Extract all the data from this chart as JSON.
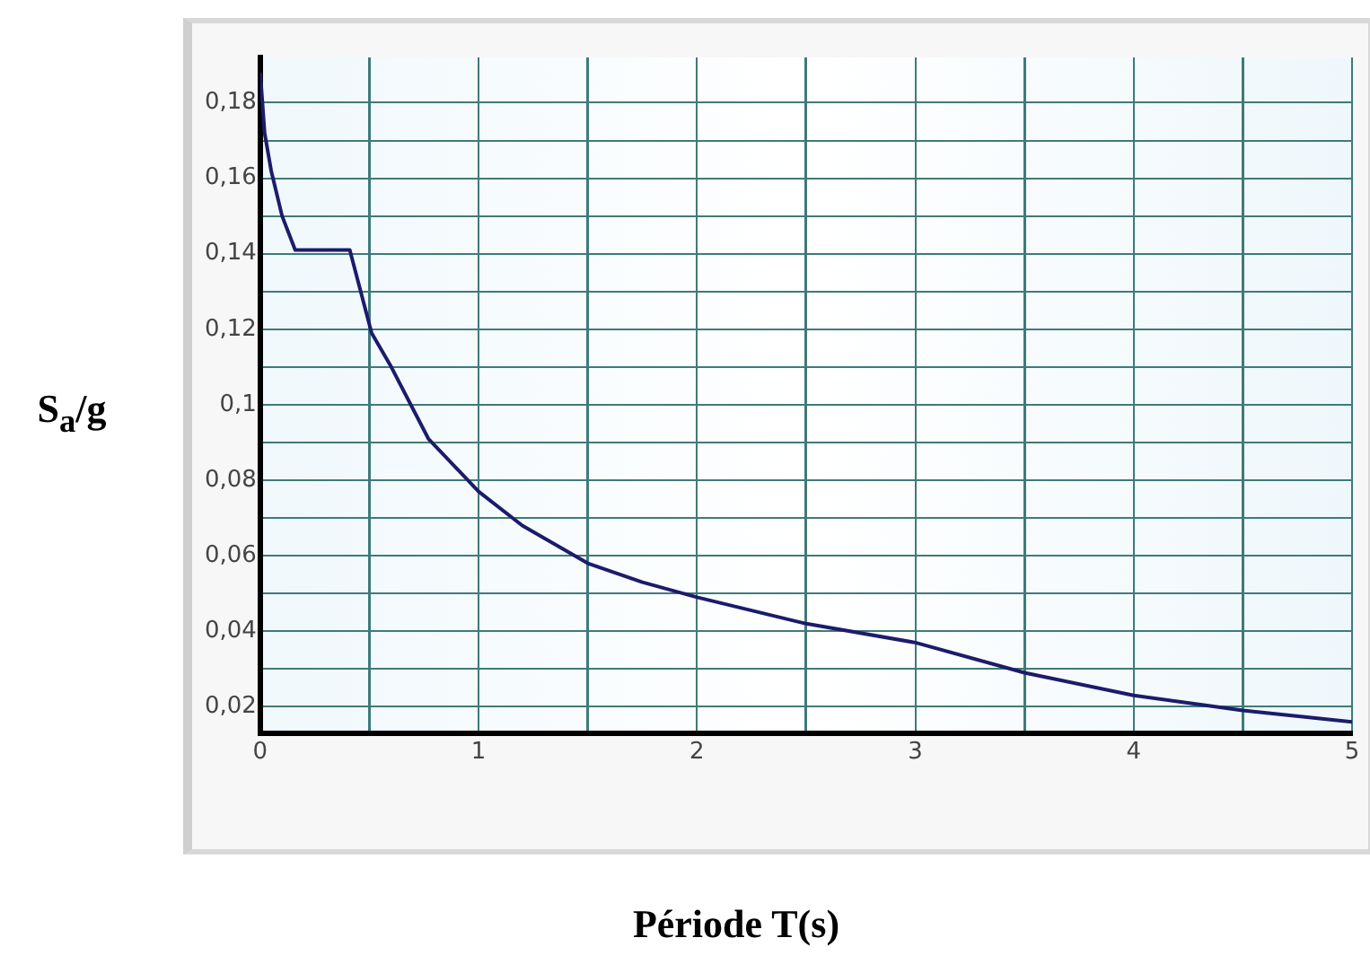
{
  "chart_data": {
    "type": "line",
    "xlabel": "Période T(s)",
    "ylabel": "S$_{a}$/g",
    "x": [
      0,
      0.02,
      0.05,
      0.1,
      0.16,
      0.41,
      0.51,
      0.6,
      0.77,
      1,
      1.2,
      1.5,
      1.75,
      2,
      2.5,
      3,
      3.5,
      4,
      4.5,
      5
    ],
    "series": [
      {
        "color": "#1c1c6b",
        "values": [
          0.188,
          0.172,
          0.162,
          0.15,
          0.141,
          0.141,
          0.119,
          0.11,
          0.091,
          0.077,
          0.068,
          0.058,
          0.053,
          0.049,
          0.042,
          0.037,
          0.029,
          0.023,
          0.019,
          0.016
        ]
      }
    ],
    "xlim": [
      0,
      5
    ],
    "xticks": [
      0,
      {
        "value": 0.5,
        "label": null
      },
      1,
      {
        "value": 1.5,
        "label": null
      },
      2,
      {
        "value": 2.5,
        "label": null
      },
      3,
      {
        "value": 3.5,
        "label": null
      },
      4,
      {
        "value": 4.5,
        "label": null
      },
      5
    ],
    "ylim": [
      0.013,
      0.192
    ],
    "yticks": [
      {
        "value": 0.02,
        "label": "0,02"
      },
      {
        "value": 0.03,
        "label": null
      },
      {
        "value": 0.04,
        "label": "0,04"
      },
      {
        "value": 0.05,
        "label": null
      },
      {
        "value": 0.06,
        "label": "0,06"
      },
      {
        "value": 0.07,
        "label": null
      },
      {
        "value": 0.08,
        "label": "0,08"
      },
      {
        "value": 0.09,
        "label": null
      },
      {
        "value": 0.1,
        "label": "0,1"
      },
      {
        "value": 0.11,
        "label": null
      },
      {
        "value": 0.12,
        "label": "0,12"
      },
      {
        "value": 0.13,
        "label": null
      },
      {
        "value": 0.14,
        "label": "0,14"
      },
      {
        "value": 0.15,
        "label": null
      },
      {
        "value": 0.16,
        "label": "0,16"
      },
      {
        "value": 0.17,
        "label": null
      },
      {
        "value": 0.18,
        "label": "0,18"
      }
    ],
    "grid": true,
    "marker": "none",
    "line_style": "solid",
    "legend": false
  }
}
